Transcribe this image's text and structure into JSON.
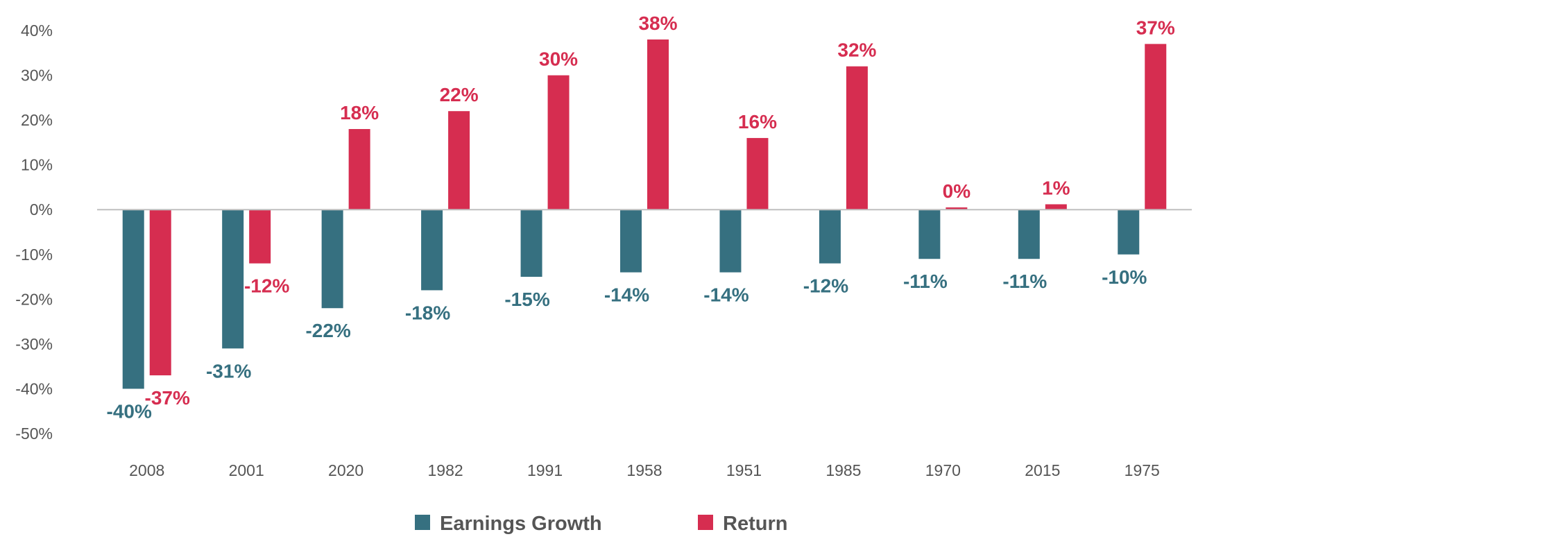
{
  "chart_data": {
    "type": "bar",
    "categories": [
      "2008",
      "2001",
      "2020",
      "1982",
      "1991",
      "1958",
      "1951",
      "1985",
      "1970",
      "2015",
      "1975"
    ],
    "series": [
      {
        "name": "Earnings Growth",
        "color": "#367080",
        "values": [
          -40,
          -31,
          -22,
          -18,
          -15,
          -14,
          -14,
          -12,
          -11,
          -11,
          -10
        ],
        "labels": [
          "-40%",
          "-31%",
          "-22%",
          "-18%",
          "-15%",
          "-14%",
          "-14%",
          "-12%",
          "-11%",
          "-11%",
          "-10%"
        ]
      },
      {
        "name": "Return",
        "color": "#D62D50",
        "values": [
          -37,
          -12,
          18,
          22,
          30,
          38,
          16,
          32,
          0.5,
          1.2,
          37
        ],
        "labels": [
          "-37%",
          "-12%",
          "18%",
          "22%",
          "30%",
          "38%",
          "16%",
          "32%",
          "0%",
          "1%",
          "37%"
        ]
      }
    ],
    "y_ticks": [
      "40%",
      "30%",
      "20%",
      "10%",
      "0%",
      "-10%",
      "-20%",
      "-30%",
      "-40%",
      "-50%"
    ],
    "ylim": [
      -50,
      40
    ],
    "title": "",
    "xlabel": "",
    "ylabel": "",
    "grid": false,
    "legend_position": "bottom-center"
  }
}
